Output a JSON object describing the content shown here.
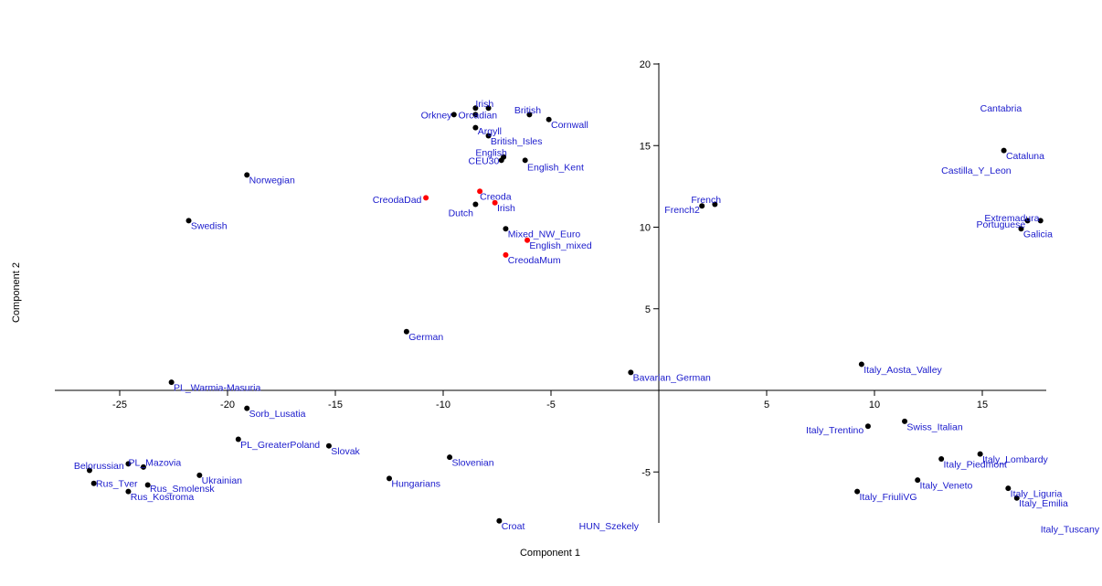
{
  "chart_data": {
    "type": "scatter",
    "xlabel": "Component 1",
    "ylabel": "Component 2",
    "xlim": [
      -28,
      18
    ],
    "ylim": [
      -8,
      20
    ],
    "xticks": [
      -25,
      -20,
      -15,
      -10,
      -5,
      5,
      10,
      15
    ],
    "yticks": [
      -5,
      5,
      10,
      15,
      20
    ],
    "highlight_color": "#ff0000",
    "default_color": "#000000",
    "label_color": "#1a1acc",
    "points": [
      {
        "label": "Irish",
        "x": -8.5,
        "y": 17.3,
        "lx": -8.5,
        "ly": 17.6,
        "anchor": "start"
      },
      {
        "label": "",
        "x": -7.9,
        "y": 17.3,
        "lx": -7.9,
        "ly": 17.3,
        "anchor": "start"
      },
      {
        "label": "Orkney",
        "x": -9.5,
        "y": 16.9,
        "lx": -9.6,
        "ly": 16.9,
        "anchor": "end"
      },
      {
        "label": "Orcadian",
        "x": -8.5,
        "y": 16.9,
        "lx": -9.3,
        "ly": 16.9,
        "anchor": "start"
      },
      {
        "label": "British",
        "x": -6.0,
        "y": 16.9,
        "lx": -6.7,
        "ly": 17.2,
        "anchor": "start"
      },
      {
        "label": "Cornwall",
        "x": -5.1,
        "y": 16.6,
        "lx": -5.0,
        "ly": 16.3,
        "anchor": "start"
      },
      {
        "label": "Argyll",
        "x": -8.5,
        "y": 16.1,
        "lx": -8.4,
        "ly": 15.9,
        "anchor": "start"
      },
      {
        "label": "British_Isles",
        "x": -7.9,
        "y": 15.6,
        "lx": -7.8,
        "ly": 15.3,
        "anchor": "start"
      },
      {
        "label": "English",
        "x": -7.2,
        "y": 14.3,
        "lx": -8.5,
        "ly": 14.6,
        "anchor": "start"
      },
      {
        "label": "CEU30",
        "x": -7.3,
        "y": 14.1,
        "lx": -7.4,
        "ly": 14.1,
        "anchor": "end"
      },
      {
        "label": "English_Kent",
        "x": -6.2,
        "y": 14.1,
        "lx": -6.1,
        "ly": 13.7,
        "anchor": "start"
      },
      {
        "label": "Norwegian",
        "x": -19.1,
        "y": 13.2,
        "lx": -19.0,
        "ly": 12.9,
        "anchor": "start"
      },
      {
        "label": "CreodaDad",
        "x": -10.8,
        "y": 11.8,
        "lx": -11.0,
        "ly": 11.7,
        "anchor": "end",
        "highlight": true
      },
      {
        "label": "Creoda",
        "x": -8.3,
        "y": 12.2,
        "lx": -8.3,
        "ly": 11.9,
        "anchor": "start",
        "highlight": true
      },
      {
        "label": "Irish",
        "x": -7.6,
        "y": 11.5,
        "lx": -7.5,
        "ly": 11.2,
        "anchor": "start",
        "highlight": true
      },
      {
        "label": "Dutch",
        "x": -8.5,
        "y": 11.4,
        "lx": -8.6,
        "ly": 10.9,
        "anchor": "end"
      },
      {
        "label": "Swedish",
        "x": -21.8,
        "y": 10.4,
        "lx": -21.7,
        "ly": 10.1,
        "anchor": "start"
      },
      {
        "label": "Mixed_NW_Euro",
        "x": -7.1,
        "y": 9.9,
        "lx": -7.0,
        "ly": 9.6,
        "anchor": "start"
      },
      {
        "label": "English_mixed",
        "x": -6.1,
        "y": 9.2,
        "lx": -6.0,
        "ly": 8.9,
        "anchor": "start",
        "highlight": true
      },
      {
        "label": "CreodaMum",
        "x": -7.1,
        "y": 8.3,
        "lx": -7.0,
        "ly": 8.0,
        "anchor": "start",
        "highlight": true
      },
      {
        "label": "German",
        "x": -11.7,
        "y": 3.6,
        "lx": -11.6,
        "ly": 3.3,
        "anchor": "start"
      },
      {
        "label": "PL_Warmia-Masuria",
        "x": -22.6,
        "y": 0.5,
        "lx": -22.5,
        "ly": 0.2,
        "anchor": "start"
      },
      {
        "label": "Sorb_Lusatia",
        "x": -19.1,
        "y": -1.1,
        "lx": -19.0,
        "ly": -1.4,
        "anchor": "start"
      },
      {
        "label": "PL_GreaterPoland",
        "x": -19.5,
        "y": -3.0,
        "lx": -19.4,
        "ly": -3.3,
        "anchor": "start"
      },
      {
        "label": "Slovak",
        "x": -15.3,
        "y": -3.4,
        "lx": -15.2,
        "ly": -3.7,
        "anchor": "start"
      },
      {
        "label": "Belorussian",
        "x": -24.6,
        "y": -4.5,
        "lx": -24.8,
        "ly": -4.6,
        "anchor": "end"
      },
      {
        "label": "PL_Mazovia",
        "x": -23.9,
        "y": -4.7,
        "lx": -24.6,
        "ly": -4.4,
        "anchor": "start"
      },
      {
        "label": "Slovenian",
        "x": -9.7,
        "y": -4.1,
        "lx": -9.6,
        "ly": -4.4,
        "anchor": "start"
      },
      {
        "label": "Rus_Tver",
        "x": -26.2,
        "y": -5.7,
        "lx": -26.1,
        "ly": -5.7,
        "anchor": "start"
      },
      {
        "label": "Ukrainian",
        "x": -21.3,
        "y": -5.2,
        "lx": -21.2,
        "ly": -5.5,
        "anchor": "start"
      },
      {
        "label": "Rus_Smolensk",
        "x": -23.7,
        "y": -5.8,
        "lx": -23.6,
        "ly": -6.0,
        "anchor": "start"
      },
      {
        "label": "Rus_Kostroma",
        "x": -24.6,
        "y": -6.2,
        "lx": -24.5,
        "ly": -6.5,
        "anchor": "start"
      },
      {
        "label": "",
        "x": -26.4,
        "y": -4.9,
        "lx": -26.4,
        "ly": -4.9,
        "anchor": "start"
      },
      {
        "label": "Hungarians",
        "x": -12.5,
        "y": -5.4,
        "lx": -12.4,
        "ly": -5.7,
        "anchor": "start"
      },
      {
        "label": "Croat",
        "x": -7.4,
        "y": -8.0,
        "lx": -7.3,
        "ly": -8.3,
        "anchor": "start"
      },
      {
        "label": "HUN_Szekely",
        "x": -3.7,
        "y": -8.3,
        "lx": -3.7,
        "ly": -8.3,
        "anchor": "start",
        "nodot": true
      },
      {
        "label": "Bavarian_German",
        "x": -1.3,
        "y": 1.1,
        "lx": -1.2,
        "ly": 0.8,
        "anchor": "start"
      },
      {
        "label": "French",
        "x": 2.6,
        "y": 11.4,
        "lx": 1.5,
        "ly": 11.7,
        "anchor": "start"
      },
      {
        "label": "French2",
        "x": 2.0,
        "y": 11.3,
        "lx": 1.9,
        "ly": 11.1,
        "anchor": "end"
      },
      {
        "label": "Cantabria",
        "x": 14.9,
        "y": 17.3,
        "lx": 14.9,
        "ly": 17.3,
        "anchor": "start",
        "nodot": true
      },
      {
        "label": "Cataluna",
        "x": 16.0,
        "y": 14.7,
        "lx": 16.1,
        "ly": 14.4,
        "anchor": "start"
      },
      {
        "label": "Castilla_Y_Leon",
        "x": 13.1,
        "y": 13.5,
        "lx": 13.1,
        "ly": 13.5,
        "anchor": "start",
        "nodot": true
      },
      {
        "label": "Extremadura",
        "x": 15.1,
        "y": 10.6,
        "lx": 15.1,
        "ly": 10.6,
        "anchor": "start",
        "nodot": true
      },
      {
        "label": "Portuguese",
        "x": 17.1,
        "y": 10.4,
        "lx": 17.0,
        "ly": 10.2,
        "anchor": "end"
      },
      {
        "label": "",
        "x": 17.7,
        "y": 10.4,
        "lx": 17.7,
        "ly": 10.4,
        "anchor": "start"
      },
      {
        "label": "Galicia",
        "x": 16.8,
        "y": 9.9,
        "lx": 16.9,
        "ly": 9.6,
        "anchor": "start"
      },
      {
        "label": "Italy_Aosta_Valley",
        "x": 9.4,
        "y": 1.6,
        "lx": 9.5,
        "ly": 1.3,
        "anchor": "start"
      },
      {
        "label": "Swiss_Italian",
        "x": 11.4,
        "y": -1.9,
        "lx": 11.5,
        "ly": -2.2,
        "anchor": "start"
      },
      {
        "label": "Italy_Trentino",
        "x": 9.7,
        "y": -2.2,
        "lx": 9.5,
        "ly": -2.4,
        "anchor": "end"
      },
      {
        "label": "Italy_Lombardy",
        "x": 14.9,
        "y": -3.9,
        "lx": 15.0,
        "ly": -4.2,
        "anchor": "start"
      },
      {
        "label": "Italy_Piedmont",
        "x": 13.1,
        "y": -4.2,
        "lx": 13.2,
        "ly": -4.5,
        "anchor": "start"
      },
      {
        "label": "Italy_Veneto",
        "x": 12.0,
        "y": -5.5,
        "lx": 12.1,
        "ly": -5.8,
        "anchor": "start"
      },
      {
        "label": "Italy_FriuliVG",
        "x": 9.2,
        "y": -6.2,
        "lx": 9.3,
        "ly": -6.5,
        "anchor": "start"
      },
      {
        "label": "Italy_Liguria",
        "x": 16.2,
        "y": -6.0,
        "lx": 16.3,
        "ly": -6.3,
        "anchor": "start"
      },
      {
        "label": "Italy_Emilia",
        "x": 16.6,
        "y": -6.6,
        "lx": 16.7,
        "ly": -6.9,
        "anchor": "start"
      },
      {
        "label": "Italy_Tuscany",
        "x": 17.7,
        "y": -8.5,
        "lx": 17.7,
        "ly": -8.5,
        "anchor": "start",
        "nodot": true
      }
    ]
  }
}
